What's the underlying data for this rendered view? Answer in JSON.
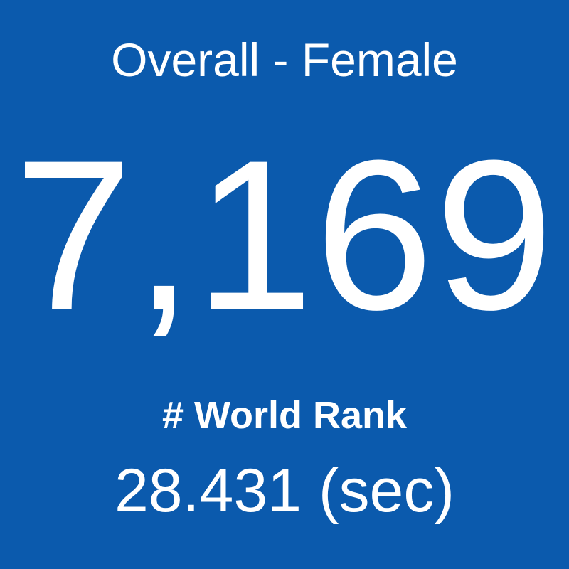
{
  "tile": {
    "title": "Overall - Female",
    "rank": "7,169",
    "rank_label": "# World Rank",
    "time": "28.431 (sec)"
  }
}
